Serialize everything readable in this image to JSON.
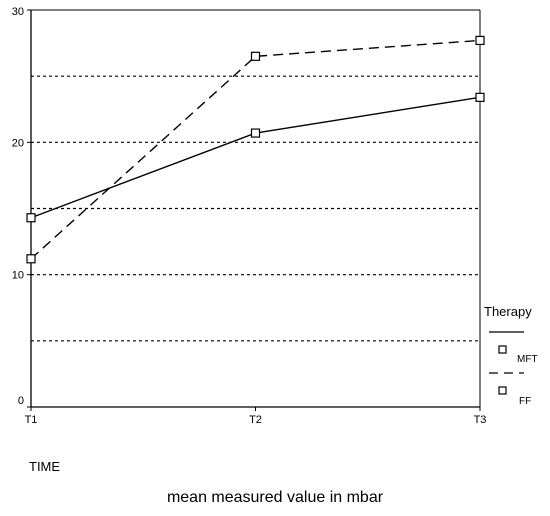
{
  "chart_data": {
    "type": "line",
    "categories": [
      "T1",
      "T2",
      "T3"
    ],
    "series": [
      {
        "name": "MFT",
        "values": [
          14.3,
          20.7,
          23.4
        ],
        "line_style": "solid",
        "marker": "square"
      },
      {
        "name": "FF",
        "values": [
          11.2,
          26.5,
          27.7
        ],
        "line_style": "dashed",
        "marker": "square"
      }
    ],
    "y_ticks": [
      0,
      10,
      20,
      30
    ],
    "ylim": [
      0,
      30
    ],
    "gridlines": [
      5,
      10,
      15,
      20,
      25
    ],
    "grid": "horizontal dotted",
    "legend_title": "Therapy",
    "legend_position": "right",
    "xlabel": "TIME",
    "caption": "mean measured value in mbar",
    "colors": {
      "line": "#000000",
      "background": "#ffffff"
    }
  }
}
